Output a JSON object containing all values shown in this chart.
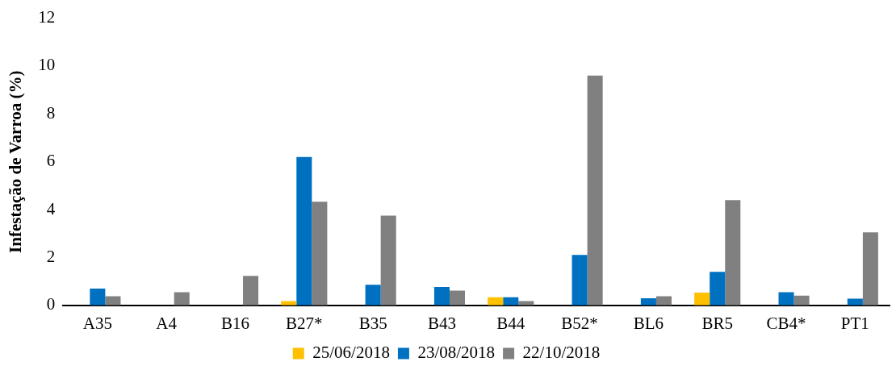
{
  "chart_data": {
    "type": "bar",
    "ylabel": "Infestação de Varroa (%)",
    "categories": [
      "A35",
      "A4",
      "B16",
      "B27*",
      "B35",
      "B43",
      "B44",
      "B52*",
      "BL6",
      "BR5",
      "CB4*",
      "PT1"
    ],
    "series": [
      {
        "name": "25/06/2018",
        "color": "#ffc000",
        "values": [
          0,
          0,
          0,
          0.18,
          0,
          0,
          0.34,
          0,
          0,
          0.53,
          0,
          0
        ]
      },
      {
        "name": "23/08/2018",
        "color": "#0070c0",
        "values": [
          0.7,
          0,
          0,
          6.2,
          0.86,
          0.77,
          0.34,
          2.11,
          0.3,
          1.4,
          0.55,
          0.28
        ]
      },
      {
        "name": "22/10/2018",
        "color": "#808080",
        "values": [
          0.38,
          0.55,
          1.23,
          4.33,
          3.75,
          0.62,
          0.18,
          9.6,
          0.38,
          4.4,
          0.41,
          3.05
        ]
      }
    ],
    "ylim": [
      0,
      12
    ],
    "yticks": [
      0,
      2,
      4,
      6,
      8,
      10,
      12
    ],
    "grid": false,
    "legend": "bottom"
  }
}
